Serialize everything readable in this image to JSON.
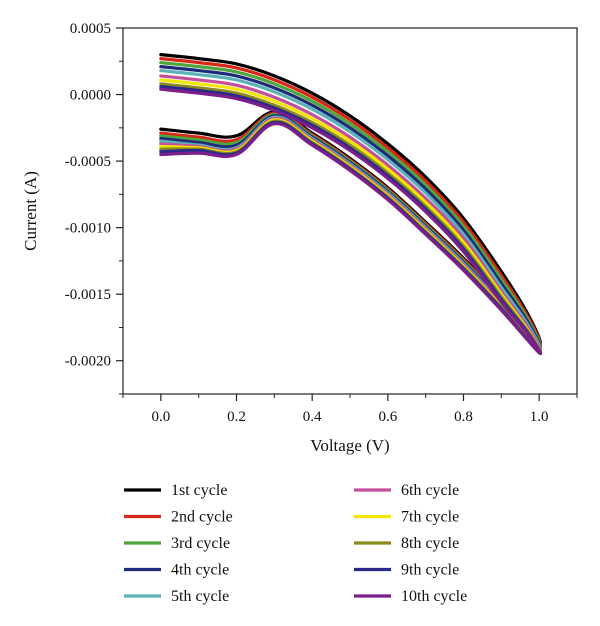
{
  "chart_data": {
    "type": "line",
    "title": "",
    "xlabel": "Voltage (V)",
    "ylabel": "Current (A)",
    "xlim": [
      -0.1,
      1.1
    ],
    "ylim": [
      -0.00225,
      0.0005
    ],
    "x_ticks": [
      "0.0",
      "0.2",
      "0.4",
      "0.6",
      "0.8",
      "1.0"
    ],
    "y_ticks": [
      "0.0005",
      "0.0000",
      "-0.0005",
      "-0.0010",
      "-0.0015",
      "-0.0020"
    ],
    "grid": false,
    "legend_position": "bottom",
    "series": [
      {
        "name": "1st cycle",
        "color": "#000000",
        "forward": {
          "x": [
            0.0,
            0.1,
            0.2,
            0.3,
            0.4,
            0.5,
            0.6,
            0.7,
            0.8,
            0.9,
            0.97,
            1.0
          ],
          "y": [
            0.0003,
            0.00027,
            0.00023,
            0.00014,
            1e-05,
            -0.00016,
            -0.00037,
            -0.00062,
            -0.00093,
            -0.00133,
            -0.00165,
            -0.00187
          ]
        },
        "reverse": {
          "x": [
            1.0,
            0.9,
            0.8,
            0.7,
            0.6,
            0.5,
            0.4,
            0.3,
            0.2,
            0.1,
            0.0
          ],
          "y": [
            -0.00187,
            -0.00153,
            -0.00123,
            -0.00096,
            -0.0007,
            -0.00048,
            -0.00029,
            -0.00013,
            -0.00031,
            -0.00029,
            -0.00026
          ]
        }
      },
      {
        "name": "2nd cycle",
        "color": "#d62718",
        "forward": {
          "x": [
            0.0,
            0.1,
            0.2,
            0.3,
            0.4,
            0.5,
            0.6,
            0.7,
            0.8,
            0.9,
            0.97,
            1.0
          ],
          "y": [
            0.00027,
            0.00024,
            0.0002,
            0.00011,
            -2e-05,
            -0.00019,
            -0.0004,
            -0.00065,
            -0.00096,
            -0.00136,
            -0.00167,
            -0.00188
          ]
        },
        "reverse": {
          "x": [
            1.0,
            0.9,
            0.8,
            0.7,
            0.6,
            0.5,
            0.4,
            0.3,
            0.2,
            0.1,
            0.0
          ],
          "y": [
            -0.00188,
            -0.00154,
            -0.00124,
            -0.00097,
            -0.00071,
            -0.00049,
            -0.0003,
            -0.00014,
            -0.00034,
            -0.00032,
            -0.00029
          ]
        }
      },
      {
        "name": "3rd cycle",
        "color": "#4fa63c",
        "forward": {
          "x": [
            0.0,
            0.1,
            0.2,
            0.3,
            0.4,
            0.5,
            0.6,
            0.7,
            0.8,
            0.9,
            0.97,
            1.0
          ],
          "y": [
            0.00024,
            0.00021,
            0.00017,
            8e-05,
            -5e-05,
            -0.00022,
            -0.00043,
            -0.00068,
            -0.00099,
            -0.00139,
            -0.00169,
            -0.00189
          ]
        },
        "reverse": {
          "x": [
            1.0,
            0.9,
            0.8,
            0.7,
            0.6,
            0.5,
            0.4,
            0.3,
            0.2,
            0.1,
            0.0
          ],
          "y": [
            -0.00189,
            -0.00155,
            -0.00125,
            -0.00098,
            -0.00072,
            -0.0005,
            -0.00031,
            -0.00015,
            -0.00036,
            -0.00034,
            -0.00031
          ]
        }
      },
      {
        "name": "4th cycle",
        "color": "#1d2b7a",
        "forward": {
          "x": [
            0.0,
            0.1,
            0.2,
            0.3,
            0.4,
            0.5,
            0.6,
            0.7,
            0.8,
            0.9,
            0.97,
            1.0
          ],
          "y": [
            0.00021,
            0.00018,
            0.00014,
            5e-05,
            -8e-05,
            -0.00025,
            -0.00046,
            -0.00071,
            -0.00102,
            -0.00142,
            -0.00171,
            -0.0019
          ]
        },
        "reverse": {
          "x": [
            1.0,
            0.9,
            0.8,
            0.7,
            0.6,
            0.5,
            0.4,
            0.3,
            0.2,
            0.1,
            0.0
          ],
          "y": [
            -0.0019,
            -0.00156,
            -0.00126,
            -0.00099,
            -0.00073,
            -0.00051,
            -0.00032,
            -0.00016,
            -0.00038,
            -0.00036,
            -0.00033
          ]
        }
      },
      {
        "name": "5th cycle",
        "color": "#5bb3b8",
        "forward": {
          "x": [
            0.0,
            0.1,
            0.2,
            0.3,
            0.4,
            0.5,
            0.6,
            0.7,
            0.8,
            0.9,
            0.97,
            1.0
          ],
          "y": [
            0.00018,
            0.00015,
            0.00011,
            2e-05,
            -0.00011,
            -0.00028,
            -0.00049,
            -0.00074,
            -0.00105,
            -0.00145,
            -0.00173,
            -0.00191
          ]
        },
        "reverse": {
          "x": [
            1.0,
            0.9,
            0.8,
            0.7,
            0.6,
            0.5,
            0.4,
            0.3,
            0.2,
            0.1,
            0.0
          ],
          "y": [
            -0.00191,
            -0.00157,
            -0.00127,
            -0.001,
            -0.00074,
            -0.00052,
            -0.00033,
            -0.00017,
            -0.0004,
            -0.00038,
            -0.00035
          ]
        }
      },
      {
        "name": "6th cycle",
        "color": "#c44d9c",
        "forward": {
          "x": [
            0.0,
            0.1,
            0.2,
            0.3,
            0.4,
            0.5,
            0.6,
            0.7,
            0.8,
            0.9,
            0.97,
            1.0
          ],
          "y": [
            0.00014,
            0.00011,
            7e-05,
            -2e-05,
            -0.00015,
            -0.00032,
            -0.00053,
            -0.00078,
            -0.00108,
            -0.00148,
            -0.00175,
            -0.00192
          ]
        },
        "reverse": {
          "x": [
            1.0,
            0.9,
            0.8,
            0.7,
            0.6,
            0.5,
            0.4,
            0.3,
            0.2,
            0.1,
            0.0
          ],
          "y": [
            -0.00192,
            -0.00158,
            -0.00128,
            -0.00101,
            -0.00075,
            -0.00053,
            -0.00034,
            -0.00018,
            -0.00041,
            -0.00039,
            -0.00037
          ]
        }
      },
      {
        "name": "7th cycle",
        "color": "#f2e600",
        "forward": {
          "x": [
            0.0,
            0.1,
            0.2,
            0.3,
            0.4,
            0.5,
            0.6,
            0.7,
            0.8,
            0.9,
            0.97,
            1.0
          ],
          "y": [
            0.00011,
            8e-05,
            4e-05,
            -5e-05,
            -0.00018,
            -0.00035,
            -0.00056,
            -0.00081,
            -0.00111,
            -0.0015,
            -0.00177,
            -0.00193
          ]
        },
        "reverse": {
          "x": [
            1.0,
            0.9,
            0.8,
            0.7,
            0.6,
            0.5,
            0.4,
            0.3,
            0.2,
            0.1,
            0.0
          ],
          "y": [
            -0.00193,
            -0.00159,
            -0.00129,
            -0.00102,
            -0.00076,
            -0.00054,
            -0.00035,
            -0.00019,
            -0.00042,
            -0.0004,
            -0.00039
          ]
        }
      },
      {
        "name": "8th cycle",
        "color": "#8a8a1a",
        "forward": {
          "x": [
            0.0,
            0.1,
            0.2,
            0.3,
            0.4,
            0.5,
            0.6,
            0.7,
            0.8,
            0.9,
            0.97,
            1.0
          ],
          "y": [
            8e-05,
            5e-05,
            1e-05,
            -8e-05,
            -0.00021,
            -0.00038,
            -0.00059,
            -0.00084,
            -0.00114,
            -0.00152,
            -0.00178,
            -0.00193
          ]
        },
        "reverse": {
          "x": [
            1.0,
            0.9,
            0.8,
            0.7,
            0.6,
            0.5,
            0.4,
            0.3,
            0.2,
            0.1,
            0.0
          ],
          "y": [
            -0.00193,
            -0.0016,
            -0.0013,
            -0.00103,
            -0.00077,
            -0.00055,
            -0.00036,
            -0.0002,
            -0.00043,
            -0.00041,
            -0.00041
          ]
        }
      },
      {
        "name": "9th cycle",
        "color": "#2a2a8c",
        "forward": {
          "x": [
            0.0,
            0.1,
            0.2,
            0.3,
            0.4,
            0.5,
            0.6,
            0.7,
            0.8,
            0.9,
            0.97,
            1.0
          ],
          "y": [
            6e-05,
            3e-05,
            -1e-05,
            -0.0001,
            -0.00023,
            -0.0004,
            -0.00061,
            -0.00086,
            -0.00116,
            -0.00154,
            -0.00179,
            -0.00194
          ]
        },
        "reverse": {
          "x": [
            1.0,
            0.9,
            0.8,
            0.7,
            0.6,
            0.5,
            0.4,
            0.3,
            0.2,
            0.1,
            0.0
          ],
          "y": [
            -0.00194,
            -0.00161,
            -0.00131,
            -0.00104,
            -0.00078,
            -0.00056,
            -0.00037,
            -0.00021,
            -0.00044,
            -0.00042,
            -0.00043
          ]
        }
      },
      {
        "name": "10th cycle",
        "color": "#7b1f8a",
        "forward": {
          "x": [
            0.0,
            0.1,
            0.2,
            0.3,
            0.4,
            0.5,
            0.6,
            0.7,
            0.8,
            0.9,
            0.97,
            1.0
          ],
          "y": [
            4e-05,
            1e-05,
            -3e-05,
            -0.00012,
            -0.00025,
            -0.00042,
            -0.00063,
            -0.00088,
            -0.00118,
            -0.00156,
            -0.0018,
            -0.00194
          ]
        },
        "reverse": {
          "x": [
            1.0,
            0.9,
            0.8,
            0.7,
            0.6,
            0.5,
            0.4,
            0.3,
            0.2,
            0.1,
            0.0
          ],
          "y": [
            -0.00194,
            -0.00162,
            -0.00132,
            -0.00105,
            -0.00079,
            -0.00057,
            -0.00038,
            -0.00022,
            -0.00045,
            -0.00044,
            -0.00045
          ]
        }
      }
    ]
  }
}
